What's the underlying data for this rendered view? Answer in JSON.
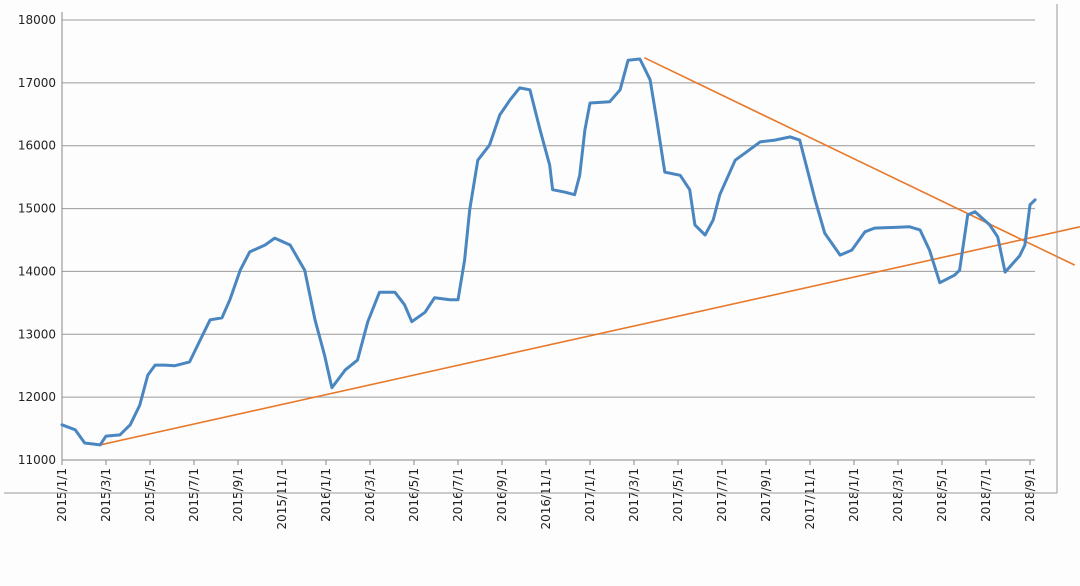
{
  "chart_data": {
    "type": "line",
    "title": "",
    "xlabel": "",
    "ylabel": "",
    "ylim": [
      11000,
      18000
    ],
    "yticks": [
      "11000",
      "12000",
      "13000",
      "14000",
      "15000",
      "16000",
      "17000",
      "18000"
    ],
    "xticks": [
      "2015/1/1",
      "2015/3/1",
      "2015/5/1",
      "2015/7/1",
      "2015/9/1",
      "2015/11/1",
      "2016/1/1",
      "2016/3/1",
      "2016/5/1",
      "2016/7/1",
      "2016/9/1",
      "2016/11/1",
      "2017/1/1",
      "2017/3/1",
      "2017/5/1",
      "2017/7/1",
      "2017/9/1",
      "2017/11/1",
      "2018/1/1",
      "2018/3/1",
      "2018/5/1",
      "2018/7/1",
      "2018/9/1"
    ],
    "grid": "horizontal",
    "colors": {
      "series": "#4a86c0",
      "trendline": "#e8782a",
      "grid": "#9a9a9a",
      "axis": "#888888"
    },
    "series": [
      {
        "points": [
          [
            "2015-01-01",
            11560
          ],
          [
            "2015-01-19",
            11480
          ],
          [
            "2015-02-02",
            11270
          ],
          [
            "2015-02-23",
            11240
          ],
          [
            "2015-03-01",
            11380
          ],
          [
            "2015-03-20",
            11400
          ],
          [
            "2015-04-04",
            11560
          ],
          [
            "2015-04-17",
            11870
          ],
          [
            "2015-04-28",
            12350
          ],
          [
            "2015-05-08",
            12510
          ],
          [
            "2015-05-21",
            12510
          ],
          [
            "2015-06-05",
            12500
          ],
          [
            "2015-06-25",
            12560
          ],
          [
            "2015-07-09",
            12900
          ],
          [
            "2015-07-23",
            13230
          ],
          [
            "2015-08-09",
            13260
          ],
          [
            "2015-08-20",
            13550
          ],
          [
            "2015-09-04",
            14020
          ],
          [
            "2015-09-17",
            14310
          ],
          [
            "2015-10-08",
            14420
          ],
          [
            "2015-10-21",
            14530
          ],
          [
            "2015-11-12",
            14420
          ],
          [
            "2015-12-02",
            14020
          ],
          [
            "2015-12-16",
            13230
          ],
          [
            "2015-12-29",
            12670
          ],
          [
            "2016-01-09",
            12150
          ],
          [
            "2016-01-27",
            12430
          ],
          [
            "2016-02-14",
            12590
          ],
          [
            "2016-02-28",
            13200
          ],
          [
            "2016-03-14",
            13670
          ],
          [
            "2016-04-05",
            13670
          ],
          [
            "2016-04-18",
            13470
          ],
          [
            "2016-04-28",
            13200
          ],
          [
            "2016-05-16",
            13350
          ],
          [
            "2016-05-29",
            13580
          ],
          [
            "2016-06-20",
            13550
          ],
          [
            "2016-07-01",
            13550
          ],
          [
            "2016-07-10",
            14180
          ],
          [
            "2016-07-17",
            14980
          ],
          [
            "2016-07-28",
            15770
          ],
          [
            "2016-08-14",
            16010
          ],
          [
            "2016-08-28",
            16490
          ],
          [
            "2016-09-12",
            16730
          ],
          [
            "2016-09-25",
            16920
          ],
          [
            "2016-10-09",
            16890
          ],
          [
            "2016-10-23",
            16250
          ],
          [
            "2016-11-06",
            15690
          ],
          [
            "2016-11-10",
            15300
          ],
          [
            "2016-11-27",
            15260
          ],
          [
            "2016-12-10",
            15220
          ],
          [
            "2016-12-17",
            15530
          ],
          [
            "2016-12-24",
            16250
          ],
          [
            "2017-01-01",
            16680
          ],
          [
            "2017-01-28",
            16700
          ],
          [
            "2017-02-12",
            16890
          ],
          [
            "2017-02-23",
            17360
          ],
          [
            "2017-03-09",
            17380
          ],
          [
            "2017-03-23",
            17050
          ],
          [
            "2017-04-02",
            16410
          ],
          [
            "2017-04-13",
            15580
          ],
          [
            "2017-05-04",
            15530
          ],
          [
            "2017-05-17",
            15300
          ],
          [
            "2017-05-24",
            14740
          ],
          [
            "2017-06-08",
            14580
          ],
          [
            "2017-06-19",
            14820
          ],
          [
            "2017-06-28",
            15220
          ],
          [
            "2017-07-19",
            15770
          ],
          [
            "2017-08-02",
            15880
          ],
          [
            "2017-08-23",
            16060
          ],
          [
            "2017-09-13",
            16090
          ],
          [
            "2017-10-04",
            16140
          ],
          [
            "2017-10-17",
            16090
          ],
          [
            "2017-10-24",
            15770
          ],
          [
            "2017-11-08",
            15140
          ],
          [
            "2017-11-21",
            14610
          ],
          [
            "2017-12-12",
            14260
          ],
          [
            "2017-12-28",
            14340
          ],
          [
            "2018-01-16",
            14630
          ],
          [
            "2018-01-29",
            14690
          ],
          [
            "2018-03-17",
            14710
          ],
          [
            "2018-04-01",
            14660
          ],
          [
            "2018-04-14",
            14340
          ],
          [
            "2018-04-28",
            13820
          ],
          [
            "2018-05-18",
            13940
          ],
          [
            "2018-05-25",
            14020
          ],
          [
            "2018-06-06",
            14900
          ],
          [
            "2018-06-16",
            14950
          ],
          [
            "2018-07-06",
            14740
          ],
          [
            "2018-07-17",
            14550
          ],
          [
            "2018-07-27",
            13990
          ],
          [
            "2018-08-17",
            14250
          ],
          [
            "2018-08-24",
            14420
          ],
          [
            "2018-09-01",
            15060
          ],
          [
            "2018-09-08",
            15140
          ]
        ]
      }
    ],
    "trendlines": [
      {
        "from": [
          "2015-02-23",
          11240
        ],
        "to": [
          "2018-11-09",
          14710
        ]
      },
      {
        "from": [
          "2017-03-15",
          17400
        ],
        "to": [
          "2018-11-02",
          14100
        ]
      }
    ]
  }
}
